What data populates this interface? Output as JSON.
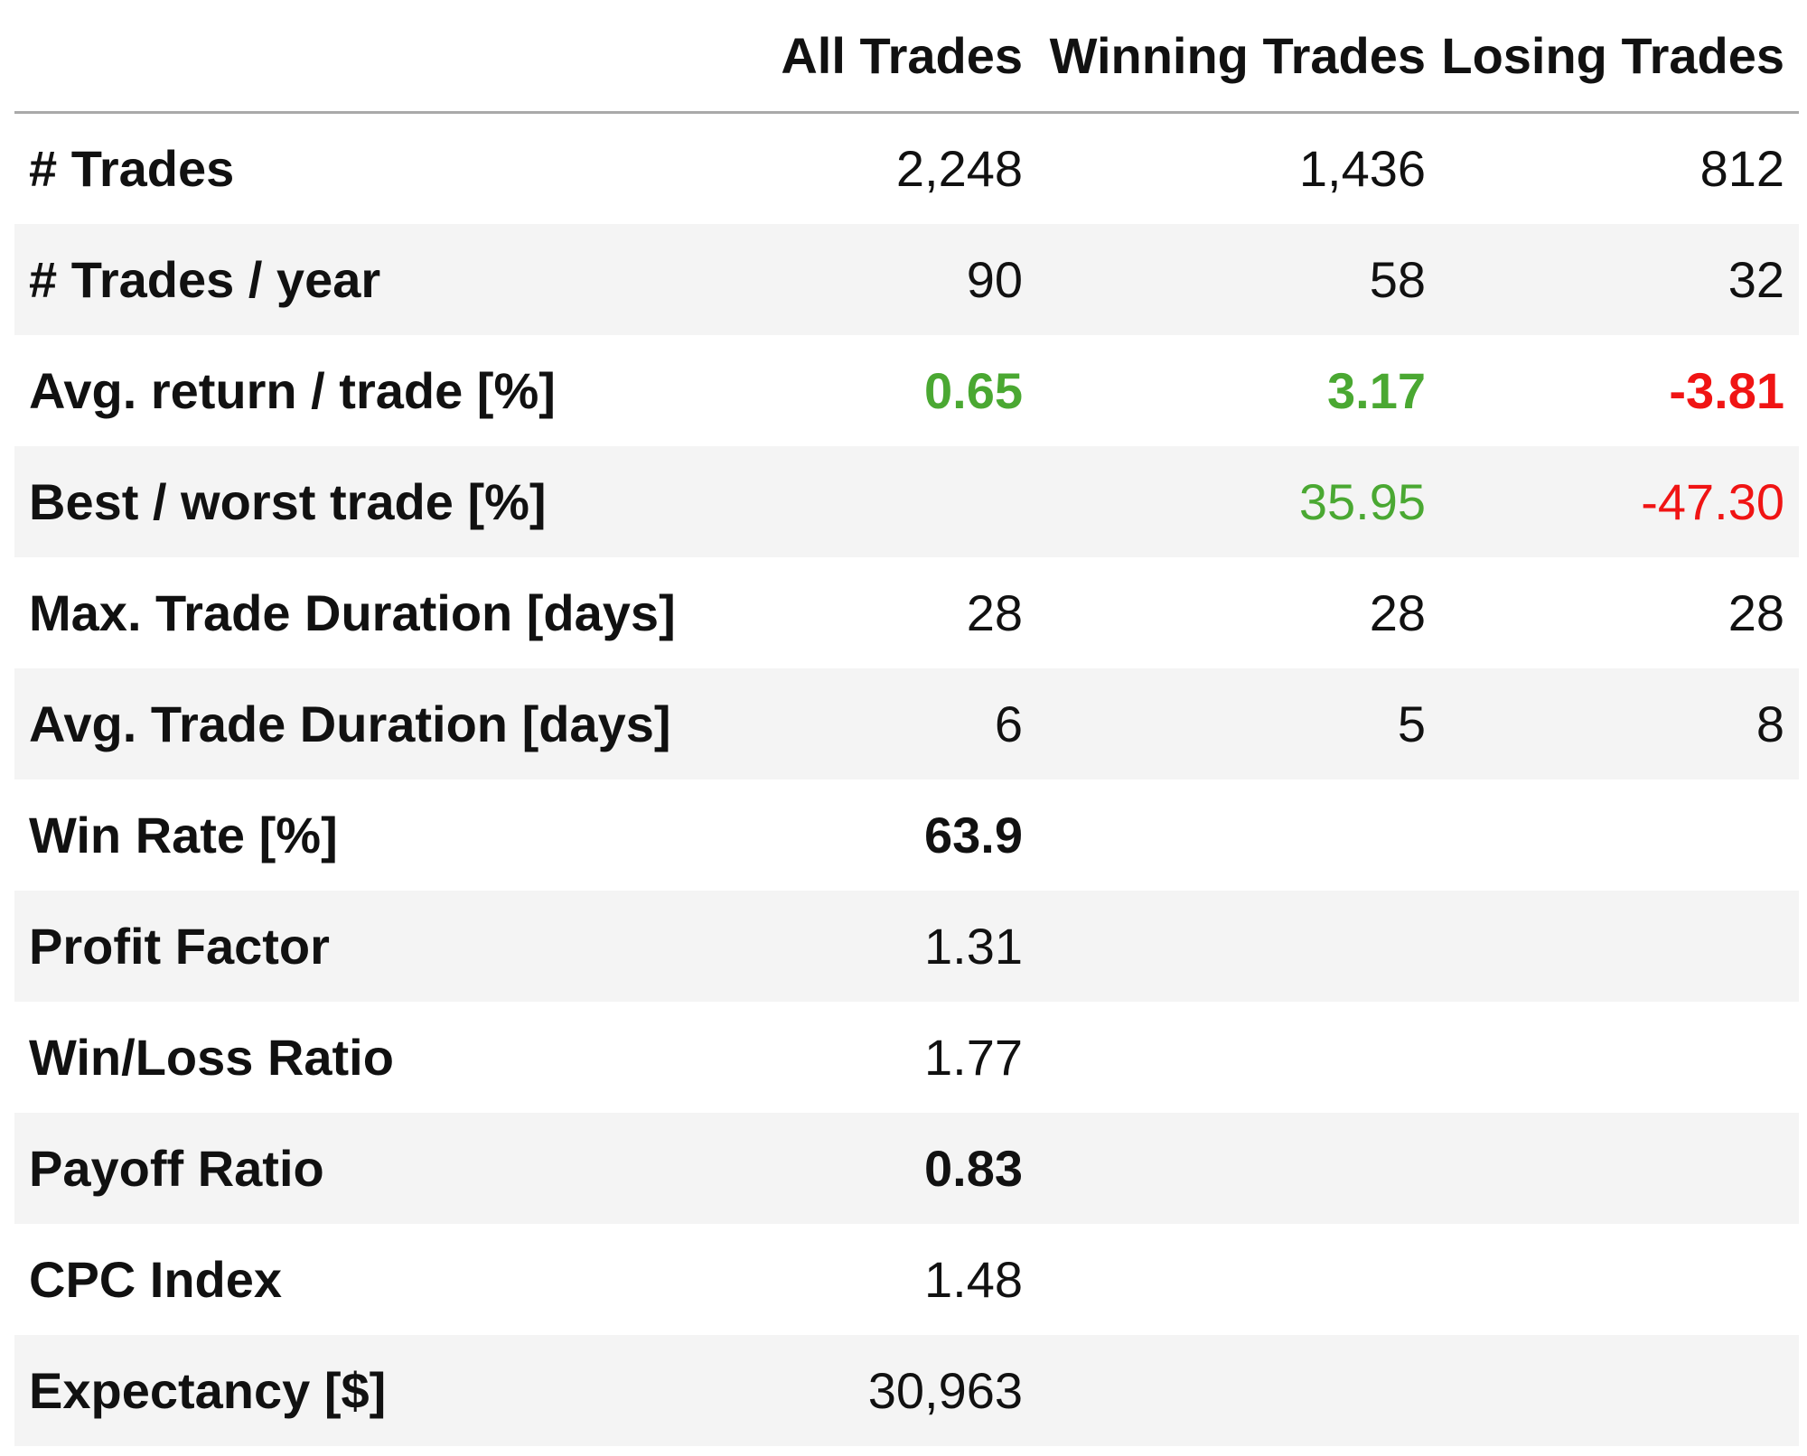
{
  "columns": [
    "",
    "All Trades",
    "Winning Trades",
    "Losing Trades"
  ],
  "rows": [
    {
      "label": "# Trades",
      "all": "2,248",
      "winning": "1,436",
      "losing": "812"
    },
    {
      "label": "# Trades / year",
      "all": "90",
      "winning": "58",
      "losing": "32"
    },
    {
      "label": "Avg. return / trade [%]",
      "all": "0.65",
      "winning": "3.17",
      "losing": "-3.81"
    },
    {
      "label": "Best / worst trade [%]",
      "all": "",
      "winning": "35.95",
      "losing": "-47.30"
    },
    {
      "label": "Max. Trade Duration [days]",
      "all": "28",
      "winning": "28",
      "losing": "28"
    },
    {
      "label": "Avg. Trade Duration [days]",
      "all": "6",
      "winning": "5",
      "losing": "8"
    },
    {
      "label": "Win Rate [%]",
      "all": "63.9",
      "winning": "",
      "losing": ""
    },
    {
      "label": "Profit Factor",
      "all": "1.31",
      "winning": "",
      "losing": ""
    },
    {
      "label": "Win/Loss Ratio",
      "all": "1.77",
      "winning": "",
      "losing": ""
    },
    {
      "label": "Payoff Ratio",
      "all": "0.83",
      "winning": "",
      "losing": ""
    },
    {
      "label": "CPC Index",
      "all": "1.48",
      "winning": "",
      "losing": ""
    },
    {
      "label": "Expectancy [$]",
      "all": "30,963",
      "winning": "",
      "losing": ""
    }
  ],
  "colors": {
    "positive": "#4aa832",
    "negative": "#f01414",
    "stripe": "#f4f4f4",
    "header_rule": "#a9a9a9"
  }
}
